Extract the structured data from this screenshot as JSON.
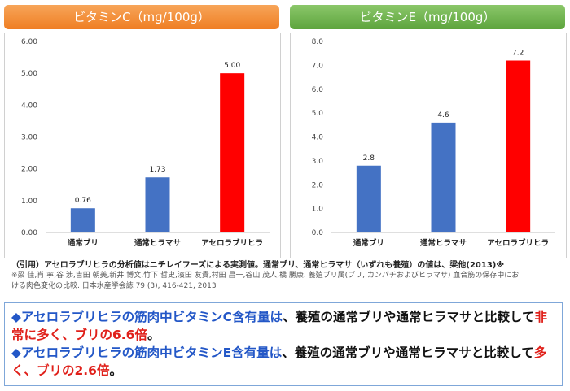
{
  "headers": {
    "vitamin_c": "ビタミンC（mg/100g）",
    "vitamin_e": "ビタミンE（mg/100g）"
  },
  "chart_data": [
    {
      "type": "bar",
      "categories": [
        "通常ブリ",
        "通常ヒラマサ",
        "アセロラブリヒラ"
      ],
      "values": [
        0.76,
        1.73,
        5.0
      ],
      "value_labels": [
        "0.76",
        "1.73",
        "5.00"
      ],
      "ylim": [
        0,
        6
      ],
      "yticks": [
        "0.00",
        "1.00",
        "2.00",
        "3.00",
        "4.00",
        "5.00",
        "6.00"
      ],
      "grid": false,
      "colors": [
        "#4472c4",
        "#4472c4",
        "#ff0000"
      ]
    },
    {
      "type": "bar",
      "categories": [
        "通常ブリ",
        "通常ヒラマサ",
        "アセロラブリヒラ"
      ],
      "values": [
        2.8,
        4.6,
        7.2
      ],
      "value_labels": [
        "2.8",
        "4.6",
        "7.2"
      ],
      "ylim": [
        0,
        8
      ],
      "yticks": [
        "0.0",
        "1.0",
        "2.0",
        "3.0",
        "4.0",
        "5.0",
        "6.0",
        "7.0",
        "8.0"
      ],
      "grid": false,
      "colors": [
        "#4472c4",
        "#4472c4",
        "#ff0000"
      ]
    }
  ],
  "citation": {
    "line1": "（引用）アセロラブリヒラの分析値はニチレイフーズによる実測値。通常ブリ、通常ヒラマサ（いずれも養殖）の値は、梁他(2013)※",
    "line2": "※梁 佳,肖 寧,谷 渉,吉田 朝美,新井 博文,竹下 哲史,濱田 友貴,村田 昌一,谷山 茂人,橋 勝康. 養殖ブリ属(ブリ, カンパチおよびヒラマサ) 血合筋の保存中にお",
    "line3": "ける肉色変化の比較. 日本水産学会誌 79 (3), 416-421, 2013"
  },
  "summary": {
    "bullet": "◆",
    "s1_blue": "アセロラブリヒラの筋肉中ビタミンC含有量は",
    "s1_mid": "、養殖の通常ブリや通常ヒラマサと比較して",
    "s1_red": "非常に多く、ブリの6.6倍",
    "s1_end": "。",
    "s2_blue": "アセロラブリヒラの筋肉中ビタミンE含有量は",
    "s2_mid": "、養殖の通常ブリや通常ヒラマサと比較して",
    "s2_red": "多く、ブリの2.6倍",
    "s2_end": "。"
  }
}
